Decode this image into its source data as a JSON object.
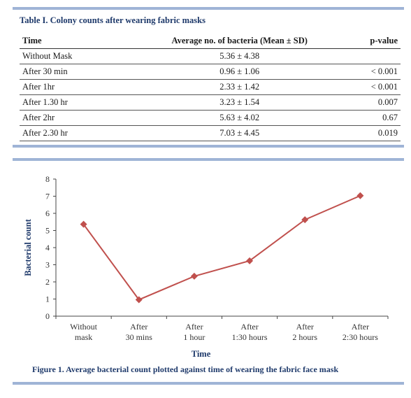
{
  "table": {
    "title": "Table I. Colony counts after wearing fabric masks",
    "headers": {
      "time": "Time",
      "mean": "Average no. of bacteria (Mean ± SD)",
      "p": "p-value"
    },
    "rows": [
      {
        "time": "Without Mask",
        "mean": "5.36 ± 4.38",
        "p": ""
      },
      {
        "time": "After 30 min",
        "mean": "0.96 ± 1.06",
        "p": "< 0.001"
      },
      {
        "time": "After 1hr",
        "mean": "2.33 ± 1.42",
        "p": "< 0.001"
      },
      {
        "time": "After 1.30 hr",
        "mean": "3.23 ± 1.54",
        "p": "0.007"
      },
      {
        "time": "After 2hr",
        "mean": "5.63 ± 4.02",
        "p": "0.67"
      },
      {
        "time": "After 2.30 hr",
        "mean": "7.03 ± 4.45",
        "p": "0.019"
      }
    ]
  },
  "figure": {
    "caption": "Figure 1. Average bacterial count plotted against time of wearing the fabric face mask"
  },
  "chart_data": {
    "type": "line",
    "categories": [
      [
        "Without",
        "mask"
      ],
      [
        "After",
        "30 mins"
      ],
      [
        "After",
        "1 hour"
      ],
      [
        "After",
        "1:30 hours"
      ],
      [
        "After",
        "2 hours"
      ],
      [
        "After",
        "2:30 hours"
      ]
    ],
    "values": [
      5.36,
      0.96,
      2.33,
      3.23,
      5.63,
      7.03
    ],
    "xlabel": "Time",
    "ylabel": "Bacterial count",
    "ylim": [
      0,
      8
    ],
    "yticks": [
      0,
      1,
      2,
      3,
      4,
      5,
      6,
      7,
      8
    ],
    "grid": false,
    "color": "#c0504d"
  }
}
